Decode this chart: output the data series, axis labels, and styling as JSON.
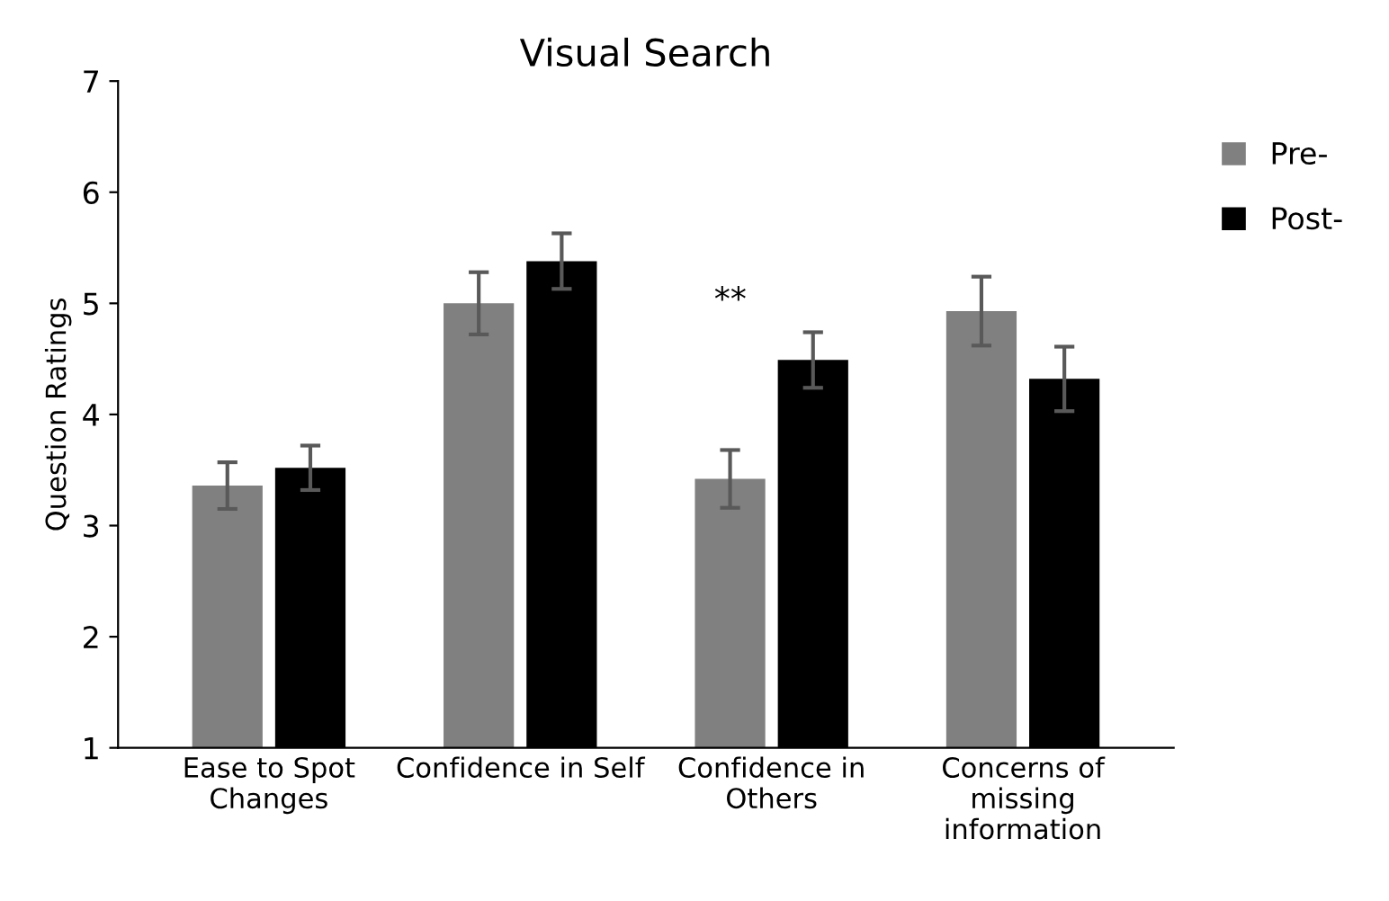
{
  "chart_data": {
    "type": "bar",
    "title": "Visual Search",
    "ylabel": "Question Ratings",
    "categories": [
      "Ease to Spot\nChanges",
      "Confidence in Self",
      "Confidence in\nOthers",
      "Concerns of\nmissing\ninformation"
    ],
    "series": [
      {
        "name": "Pre-",
        "color": "#808080",
        "values": [
          3.36,
          5.0,
          3.42,
          4.93
        ],
        "errors": [
          0.21,
          0.28,
          0.26,
          0.31
        ]
      },
      {
        "name": "Post-",
        "color": "#000000",
        "values": [
          3.52,
          5.38,
          4.49,
          4.32
        ],
        "errors": [
          0.2,
          0.25,
          0.25,
          0.29
        ]
      }
    ],
    "annotations": [
      "**"
    ],
    "ylim": [
      1,
      7
    ],
    "yticks": [
      1,
      2,
      3,
      4,
      5,
      6,
      7
    ],
    "grid": false,
    "legend": "right"
  }
}
